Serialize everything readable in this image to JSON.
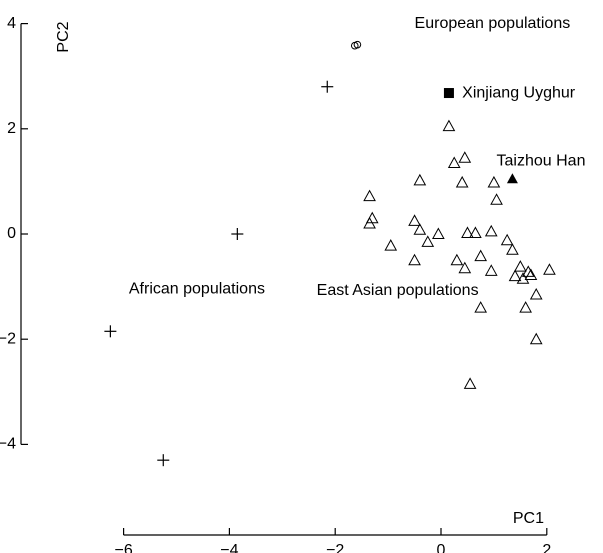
{
  "chart_data": {
    "type": "scatter",
    "xlabel": "PC1",
    "ylabel": "PC2",
    "xlim": [
      -6.3,
      2.3
    ],
    "ylim": [
      -4.2,
      4.2
    ],
    "xticks": [
      -6,
      -4,
      -2,
      0,
      2
    ],
    "yticks": [
      -4,
      -2,
      0,
      2,
      4
    ],
    "xtick_labels": [
      "−6",
      "−4",
      "−2",
      "0",
      "2"
    ],
    "ytick_labels": [
      "−4",
      "−2",
      "0",
      "2",
      "4"
    ],
    "grid": false,
    "legend": "none",
    "series": [
      {
        "marker": "plus",
        "points": [
          [
            -6.25,
            -1.85
          ],
          [
            -5.25,
            -4.3
          ],
          [
            -3.85,
            0.0
          ],
          [
            -2.15,
            2.8
          ]
        ]
      },
      {
        "marker": "open-circle",
        "points": [
          [
            -1.63,
            3.58
          ],
          [
            -1.58,
            3.6
          ]
        ]
      },
      {
        "marker": "filled-square",
        "points": [
          [
            0.15,
            2.68
          ]
        ]
      },
      {
        "marker": "filled-triangle",
        "points": [
          [
            1.35,
            1.05
          ]
        ]
      },
      {
        "marker": "open-triangle",
        "points": [
          [
            0.15,
            2.05
          ],
          [
            0.25,
            1.35
          ],
          [
            0.45,
            1.45
          ],
          [
            0.4,
            0.98
          ],
          [
            -0.4,
            1.02
          ],
          [
            -1.35,
            0.72
          ],
          [
            -1.3,
            0.3
          ],
          [
            -1.35,
            0.2
          ],
          [
            -0.5,
            0.25
          ],
          [
            -0.4,
            0.08
          ],
          [
            -0.25,
            -0.15
          ],
          [
            -0.95,
            -0.22
          ],
          [
            -0.5,
            -0.5
          ],
          [
            -0.05,
            0.0
          ],
          [
            0.5,
            0.02
          ],
          [
            0.65,
            0.02
          ],
          [
            0.3,
            -0.5
          ],
          [
            0.45,
            -0.65
          ],
          [
            0.75,
            -0.42
          ],
          [
            0.95,
            0.05
          ],
          [
            1.05,
            0.65
          ],
          [
            1.0,
            0.98
          ],
          [
            0.95,
            -0.7
          ],
          [
            1.25,
            -0.12
          ],
          [
            1.35,
            -0.3
          ],
          [
            1.5,
            -0.62
          ],
          [
            1.65,
            -0.72
          ],
          [
            1.7,
            -0.78
          ],
          [
            1.4,
            -0.8
          ],
          [
            1.55,
            -0.85
          ],
          [
            2.05,
            -0.68
          ],
          [
            1.8,
            -1.15
          ],
          [
            1.6,
            -1.4
          ],
          [
            1.8,
            -2.0
          ],
          [
            0.75,
            -1.4
          ],
          [
            0.55,
            -2.85
          ]
        ]
      }
    ],
    "annotations": [
      {
        "text": "European populations",
        "x": -0.5,
        "y": 4.0
      },
      {
        "text": "Xinjiang Uyghur",
        "x": 0.4,
        "y": 2.68
      },
      {
        "text": "Taizhou Han",
        "x": 1.05,
        "y": 1.38
      },
      {
        "text": "African populations",
        "x": -5.9,
        "y": -1.05
      },
      {
        "text": "East Asian populations",
        "x": -2.35,
        "y": -1.08
      }
    ]
  }
}
